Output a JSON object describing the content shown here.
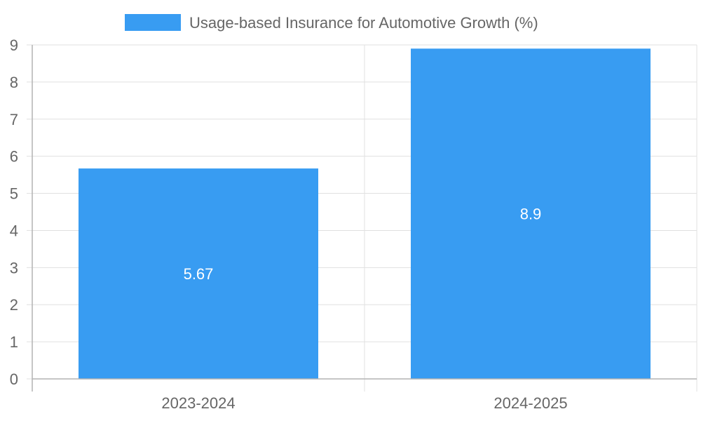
{
  "chart_data": {
    "type": "bar",
    "categories": [
      "2023-2024",
      "2024-2025"
    ],
    "series": [
      {
        "name": "Usage-based Insurance for Automotive Growth (%)",
        "values": [
          5.67,
          8.9
        ],
        "color": "#389cf2"
      }
    ],
    "data_labels": [
      "5.67",
      "8.9"
    ],
    "ylim": [
      0,
      9
    ],
    "yticks": [
      0,
      1,
      2,
      3,
      4,
      5,
      6,
      7,
      8,
      9
    ],
    "grid": true,
    "legend_position": "top-center"
  }
}
